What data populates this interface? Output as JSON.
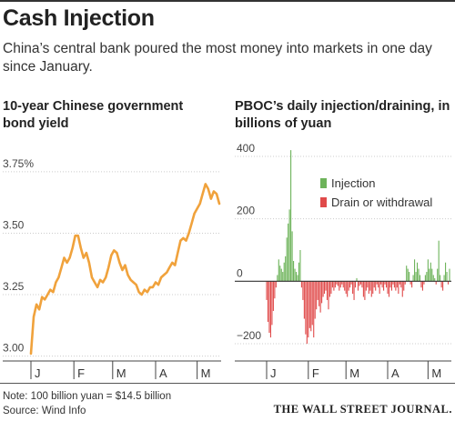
{
  "header": {
    "title": "Cash Injection",
    "subtitle": "China’s central bank poured the most money into markets in one day since January."
  },
  "footer": {
    "note": "Note: 100 billion yuan = $14.5 billion",
    "source": "Source: Wind Info",
    "publisher": "THE WALL STREET JOURNAL."
  },
  "colors": {
    "line": "#f0a23c",
    "injection": "#6db35a",
    "drain": "#e04a4a",
    "grid": "#cccccc"
  },
  "chart_data": [
    {
      "type": "line",
      "title": "10-year Chinese government bond yield",
      "y_ticks": [
        "3.75%",
        "3.50",
        "3.25",
        "3.00"
      ],
      "ylim": [
        2.98,
        3.82
      ],
      "month_labels": [
        "J",
        "F",
        "M",
        "A",
        "M"
      ],
      "month_starts": [
        0,
        31,
        59,
        90,
        120
      ],
      "series": [
        {
          "x": [
            0,
            2,
            4,
            6,
            8,
            10,
            12,
            14,
            16,
            18,
            20,
            22,
            24,
            26,
            28,
            30,
            32,
            34,
            36,
            38,
            40,
            42,
            44,
            46,
            48,
            50,
            52,
            54,
            56,
            58,
            60,
            62,
            64,
            66,
            68,
            70,
            72,
            74,
            76,
            78,
            80,
            82,
            84,
            86,
            88,
            90,
            92,
            94,
            96,
            98,
            100,
            102,
            104,
            106,
            108,
            110,
            112,
            114,
            116,
            118,
            120,
            122,
            124,
            126,
            128,
            130,
            132,
            134,
            136
          ],
          "values": [
            3.01,
            3.16,
            3.21,
            3.19,
            3.24,
            3.23,
            3.25,
            3.27,
            3.26,
            3.3,
            3.32,
            3.36,
            3.4,
            3.38,
            3.4,
            3.44,
            3.49,
            3.49,
            3.44,
            3.4,
            3.42,
            3.38,
            3.32,
            3.3,
            3.28,
            3.31,
            3.3,
            3.32,
            3.36,
            3.41,
            3.43,
            3.42,
            3.38,
            3.35,
            3.37,
            3.33,
            3.31,
            3.3,
            3.29,
            3.26,
            3.25,
            3.27,
            3.26,
            3.28,
            3.28,
            3.3,
            3.29,
            3.32,
            3.33,
            3.34,
            3.36,
            3.38,
            3.37,
            3.42,
            3.47,
            3.48,
            3.47,
            3.5,
            3.54,
            3.58,
            3.6,
            3.62,
            3.66,
            3.7,
            3.68,
            3.64,
            3.67,
            3.66,
            3.62
          ]
        }
      ]
    },
    {
      "type": "bar",
      "title": "PBOC’s daily injection/draining, in billions of yuan",
      "y_ticks": [
        "400",
        "200",
        "0",
        "−200"
      ],
      "ylim": [
        -250,
        450
      ],
      "month_labels": [
        "J",
        "F",
        "M",
        "A",
        "M"
      ],
      "month_starts": [
        0,
        31,
        59,
        90,
        120
      ],
      "legend": [
        "Injection",
        "Drain or withdrawal"
      ],
      "legend_position": "top-right",
      "x": [
        0,
        1,
        2,
        3,
        4,
        5,
        6,
        7,
        8,
        9,
        10,
        11,
        12,
        13,
        14,
        15,
        16,
        17,
        18,
        19,
        20,
        21,
        22,
        23,
        24,
        25,
        26,
        27,
        28,
        29,
        30,
        31,
        32,
        33,
        34,
        35,
        36,
        37,
        38,
        39,
        40,
        41,
        42,
        43,
        44,
        45,
        46,
        47,
        48,
        49,
        50,
        51,
        52,
        53,
        54,
        55,
        56,
        57,
        58,
        59,
        60,
        61,
        62,
        63,
        64,
        65,
        66,
        67,
        68,
        69,
        70,
        71,
        72,
        73,
        74,
        75,
        76,
        77,
        78,
        79,
        80,
        81,
        82,
        83,
        84,
        85,
        86,
        87,
        88,
        89,
        90,
        91,
        92,
        93,
        94,
        95,
        96,
        97,
        98,
        99,
        100,
        101,
        102,
        103,
        104,
        105,
        106,
        107,
        108,
        109,
        110,
        111,
        112,
        113,
        114,
        115,
        116,
        117,
        118,
        119,
        120,
        121,
        122,
        123,
        124,
        125,
        126,
        127,
        128,
        129,
        130,
        131,
        132,
        133,
        134,
        135,
        136
      ],
      "values": [
        -60,
        -130,
        -165,
        -180,
        -140,
        -95,
        -55,
        -20,
        20,
        70,
        50,
        40,
        30,
        60,
        80,
        140,
        185,
        230,
        420,
        160,
        65,
        40,
        30,
        20,
        60,
        100,
        -20,
        -60,
        -120,
        -170,
        -200,
        -180,
        -150,
        -160,
        -140,
        -180,
        -120,
        -90,
        -60,
        -80,
        -100,
        -70,
        -50,
        -40,
        -30,
        -60,
        -90,
        -50,
        -40,
        -20,
        -30,
        -20,
        -10,
        -15,
        -30,
        -20,
        -10,
        -20,
        -30,
        -40,
        -50,
        -30,
        -20,
        -10,
        -40,
        -60,
        -20,
        10,
        -30,
        -15,
        -10,
        -20,
        -50,
        -60,
        -30,
        -20,
        -40,
        -30,
        -50,
        -40,
        -20,
        -30,
        -10,
        -20,
        -40,
        -10,
        -20,
        -30,
        -10,
        -20,
        -40,
        -50,
        -20,
        -30,
        -10,
        -20,
        -30,
        -20,
        -40,
        -10,
        -20,
        -50,
        -30,
        -10,
        50,
        40,
        30,
        -10,
        -20,
        20,
        70,
        30,
        60,
        40,
        20,
        -20,
        -30,
        -10,
        20,
        30,
        70,
        40,
        60,
        40,
        20,
        10,
        -10,
        40,
        130,
        20,
        -20,
        -30,
        20,
        60,
        30,
        -10,
        40
      ]
    }
  ]
}
